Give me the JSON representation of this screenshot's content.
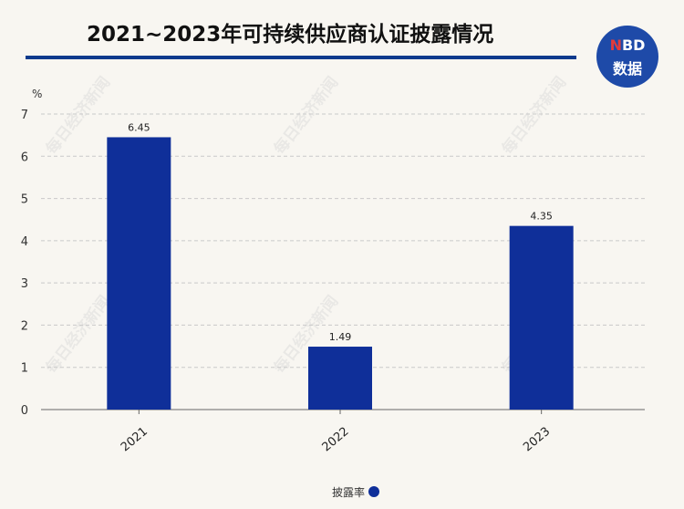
{
  "chart_data": {
    "type": "bar",
    "title": "2021~2023年可持续供应商认证披露情况",
    "categories": [
      "2021",
      "2022",
      "2023"
    ],
    "series": [
      {
        "name": "披露率",
        "values": [
          6.45,
          1.49,
          4.35
        ],
        "color": "#0f2f99"
      }
    ],
    "data_labels": [
      "6.45",
      "1.49",
      "4.35"
    ],
    "yunit": "%",
    "ylim": [
      0,
      7
    ],
    "yticks": [
      "0",
      "1",
      "2",
      "3",
      "4",
      "5",
      "6",
      "7"
    ],
    "grid": true,
    "legend_position": "bottom-center"
  },
  "branding": {
    "logo_line1_a": "N",
    "logo_line1_b": "BD",
    "logo_line2": "数据",
    "watermark": "每日经济新闻"
  },
  "colors": {
    "bar": "#0f2f99",
    "title_rule": "#0d3a8c",
    "logo_bg": "#1e4aa8"
  }
}
